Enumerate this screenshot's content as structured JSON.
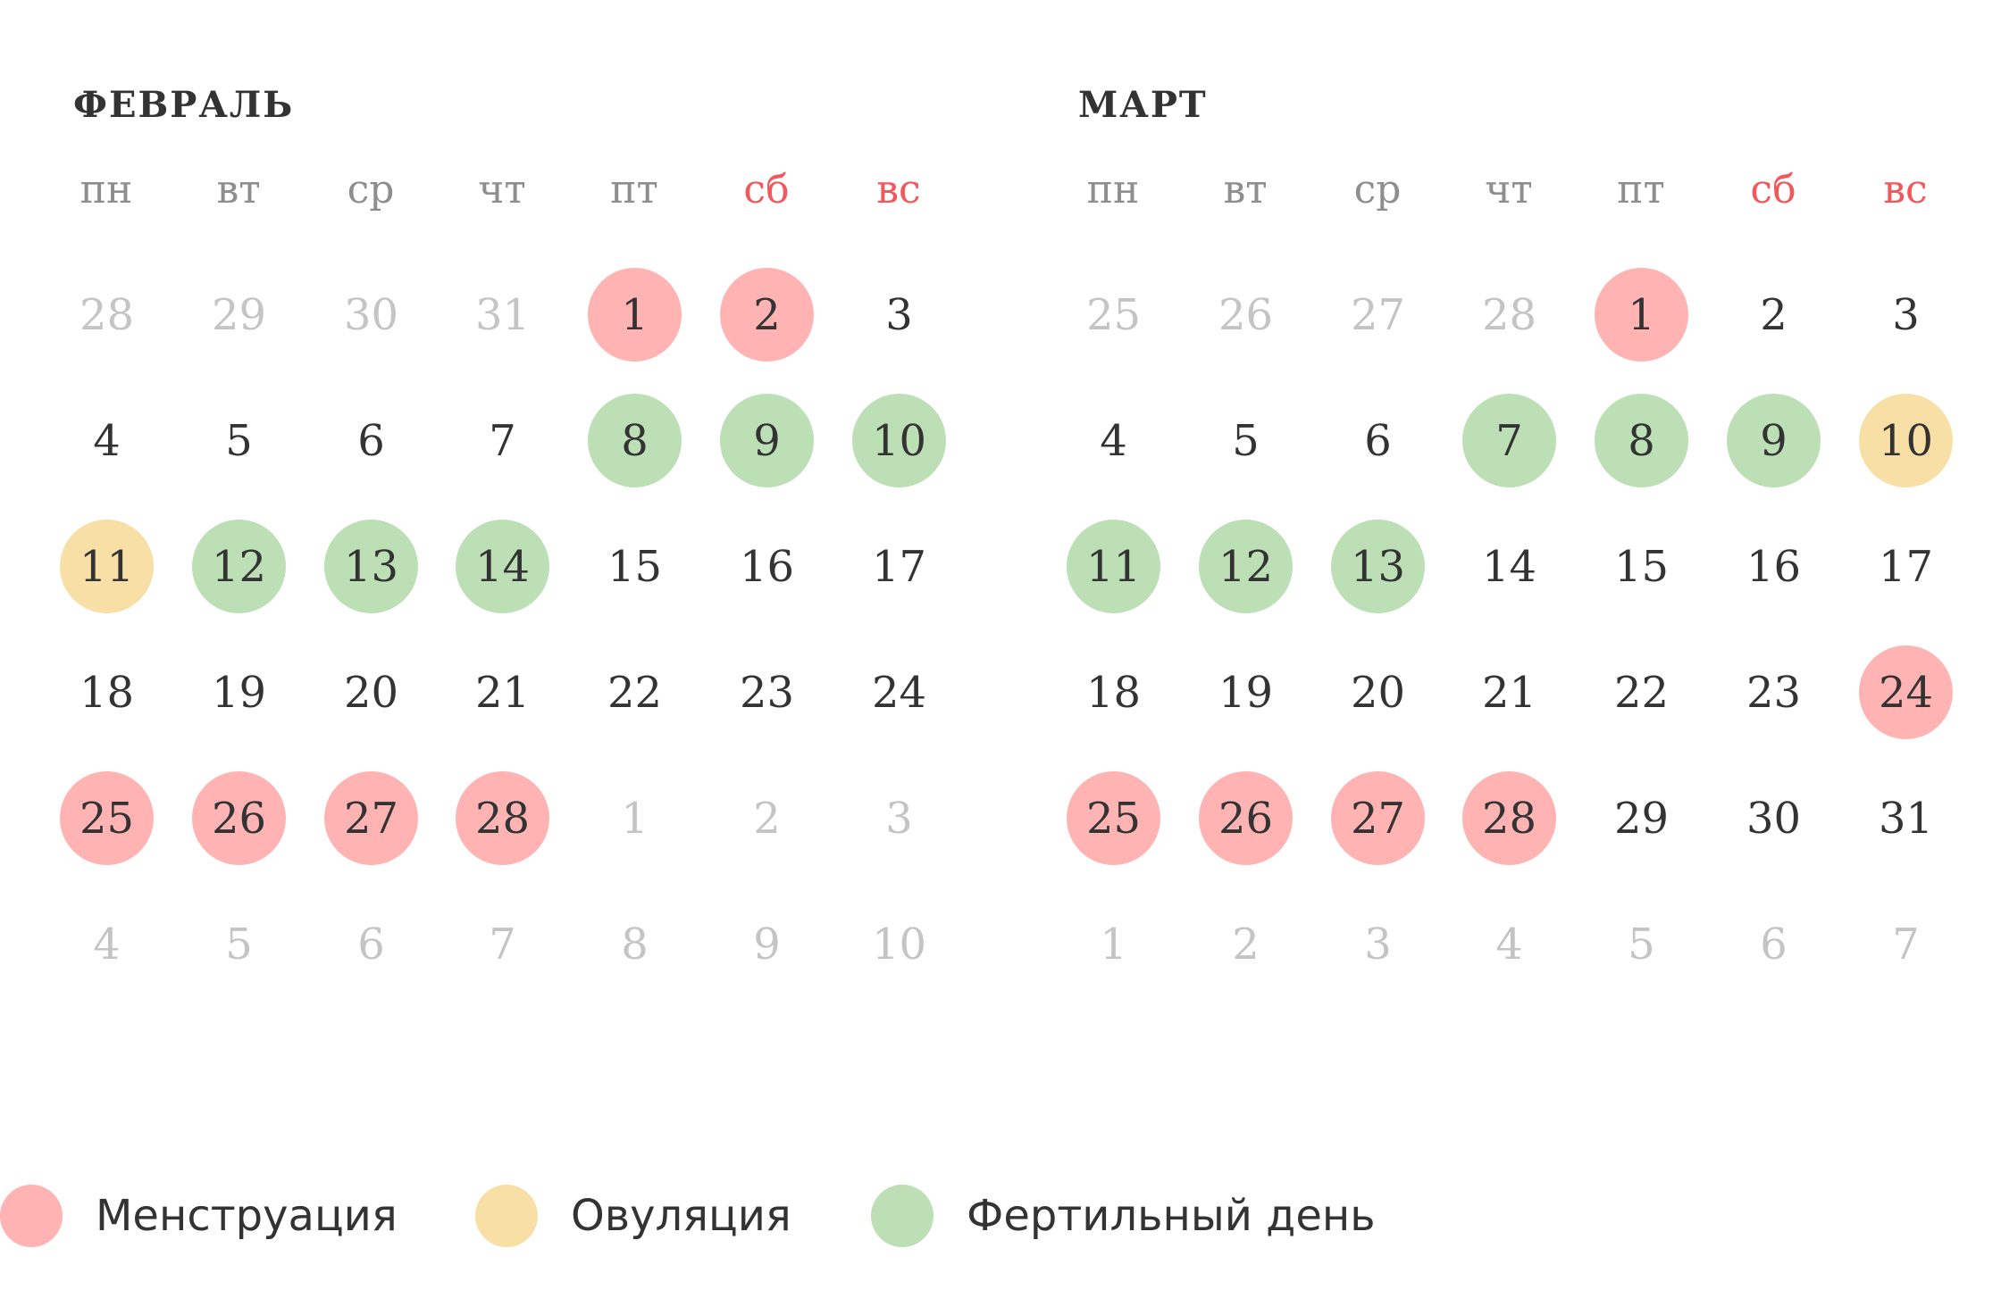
{
  "colors": {
    "menstruation": "#ffb3b3",
    "ovulation": "#f8dfa5",
    "fertile": "#bcdfb5",
    "weekend_header": "#f2585b",
    "weekday_header": "#8e8e8e",
    "muted_day": "#c4c4c4",
    "text": "#333333"
  },
  "weekdays": [
    "пн",
    "вт",
    "ср",
    "чт",
    "пт",
    "сб",
    "вс"
  ],
  "months": [
    {
      "title": "ФЕВРАЛЬ",
      "weeks": [
        [
          {
            "d": "28",
            "muted": true
          },
          {
            "d": "29",
            "muted": true
          },
          {
            "d": "30",
            "muted": true
          },
          {
            "d": "31",
            "muted": true
          },
          {
            "d": "1",
            "mark": "menstruation"
          },
          {
            "d": "2",
            "mark": "menstruation"
          },
          {
            "d": "3"
          }
        ],
        [
          {
            "d": "4"
          },
          {
            "d": "5"
          },
          {
            "d": "6"
          },
          {
            "d": "7"
          },
          {
            "d": "8",
            "mark": "fertile"
          },
          {
            "d": "9",
            "mark": "fertile"
          },
          {
            "d": "10",
            "mark": "fertile"
          }
        ],
        [
          {
            "d": "11",
            "mark": "ovulation"
          },
          {
            "d": "12",
            "mark": "fertile"
          },
          {
            "d": "13",
            "mark": "fertile"
          },
          {
            "d": "14",
            "mark": "fertile"
          },
          {
            "d": "15"
          },
          {
            "d": "16"
          },
          {
            "d": "17"
          }
        ],
        [
          {
            "d": "18"
          },
          {
            "d": "19"
          },
          {
            "d": "20"
          },
          {
            "d": "21"
          },
          {
            "d": "22"
          },
          {
            "d": "23"
          },
          {
            "d": "24"
          }
        ],
        [
          {
            "d": "25",
            "mark": "menstruation"
          },
          {
            "d": "26",
            "mark": "menstruation"
          },
          {
            "d": "27",
            "mark": "menstruation"
          },
          {
            "d": "28",
            "mark": "menstruation"
          },
          {
            "d": "1",
            "muted": true
          },
          {
            "d": "2",
            "muted": true
          },
          {
            "d": "3",
            "muted": true
          }
        ],
        [
          {
            "d": "4",
            "muted": true
          },
          {
            "d": "5",
            "muted": true
          },
          {
            "d": "6",
            "muted": true
          },
          {
            "d": "7",
            "muted": true
          },
          {
            "d": "8",
            "muted": true
          },
          {
            "d": "9",
            "muted": true
          },
          {
            "d": "10",
            "muted": true
          }
        ]
      ]
    },
    {
      "title": "МАРТ",
      "weeks": [
        [
          {
            "d": "25",
            "muted": true
          },
          {
            "d": "26",
            "muted": true
          },
          {
            "d": "27",
            "muted": true
          },
          {
            "d": "28",
            "muted": true
          },
          {
            "d": "1",
            "mark": "menstruation"
          },
          {
            "d": "2"
          },
          {
            "d": "3"
          }
        ],
        [
          {
            "d": "4"
          },
          {
            "d": "5"
          },
          {
            "d": "6"
          },
          {
            "d": "7",
            "mark": "fertile"
          },
          {
            "d": "8",
            "mark": "fertile"
          },
          {
            "d": "9",
            "mark": "fertile"
          },
          {
            "d": "10",
            "mark": "ovulation"
          }
        ],
        [
          {
            "d": "11",
            "mark": "fertile"
          },
          {
            "d": "12",
            "mark": "fertile"
          },
          {
            "d": "13",
            "mark": "fertile"
          },
          {
            "d": "14"
          },
          {
            "d": "15"
          },
          {
            "d": "16"
          },
          {
            "d": "17"
          }
        ],
        [
          {
            "d": "18"
          },
          {
            "d": "19"
          },
          {
            "d": "20"
          },
          {
            "d": "21"
          },
          {
            "d": "22"
          },
          {
            "d": "23"
          },
          {
            "d": "24",
            "mark": "menstruation"
          }
        ],
        [
          {
            "d": "25",
            "mark": "menstruation"
          },
          {
            "d": "26",
            "mark": "menstruation"
          },
          {
            "d": "27",
            "mark": "menstruation"
          },
          {
            "d": "28",
            "mark": "menstruation"
          },
          {
            "d": "29"
          },
          {
            "d": "30"
          },
          {
            "d": "31"
          }
        ],
        [
          {
            "d": "1",
            "muted": true
          },
          {
            "d": "2",
            "muted": true
          },
          {
            "d": "3",
            "muted": true
          },
          {
            "d": "4",
            "muted": true
          },
          {
            "d": "5",
            "muted": true
          },
          {
            "d": "6",
            "muted": true
          },
          {
            "d": "7",
            "muted": true
          }
        ]
      ]
    }
  ],
  "legend": [
    {
      "key": "menstruation",
      "label": "Менструация"
    },
    {
      "key": "ovulation",
      "label": "Овуляция"
    },
    {
      "key": "fertile",
      "label": "Фертильный день"
    }
  ]
}
